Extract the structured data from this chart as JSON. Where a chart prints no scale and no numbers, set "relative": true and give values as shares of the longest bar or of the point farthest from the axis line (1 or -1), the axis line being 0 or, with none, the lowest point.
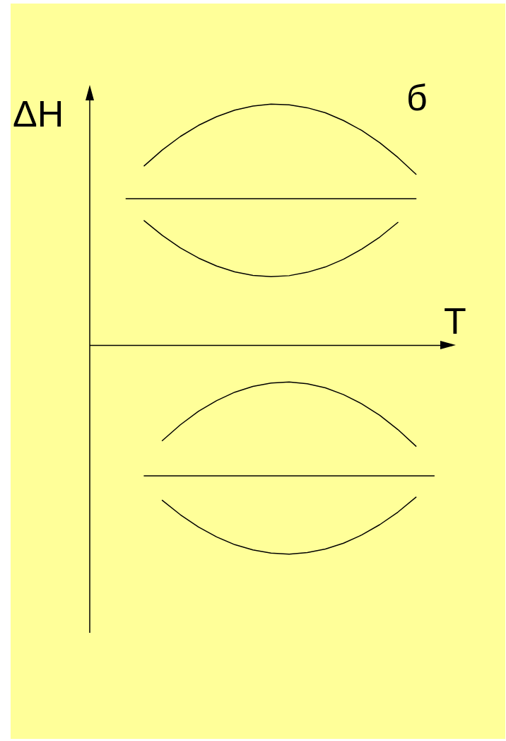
{
  "chart_data": {
    "type": "line",
    "relative": true,
    "xlabel": "T",
    "ylabel": "ΔH",
    "annotations": [
      "б"
    ],
    "tick_labels": false,
    "legend": false,
    "marker": "none",
    "line_style": "solid",
    "categories": [
      null,
      null,
      null,
      null,
      null,
      null,
      null,
      null,
      null,
      null,
      null,
      null,
      null,
      null,
      null,
      null,
      null,
      null,
      null,
      null,
      null
    ],
    "series": [
      {
        "color": "#000000",
        "values": [
          null,
          null,
          null,
          0.744,
          0.81,
          0.866,
          0.912,
          0.948,
          0.975,
          0.992,
          1,
          0.997,
          0.985,
          0.964,
          0.932,
          0.891,
          0.84,
          0.779,
          0.709,
          null,
          null
        ]
      },
      {
        "color": "#000000",
        "values": [
          null,
          null,
          0.608,
          0.608,
          0.608,
          0.608,
          0.608,
          0.608,
          0.608,
          0.608,
          0.608,
          0.608,
          0.608,
          0.608,
          0.608,
          0.608,
          0.608,
          0.608,
          0.608,
          null,
          null
        ]
      },
      {
        "color": "#000000",
        "values": [
          null,
          null,
          null,
          0.517,
          0.456,
          0.404,
          0.362,
          0.329,
          0.305,
          0.29,
          0.285,
          0.289,
          0.303,
          0.325,
          0.357,
          0.399,
          0.449,
          0.51,
          null,
          null,
          null
        ]
      },
      {
        "color": "#000000",
        "values": [
          null,
          null,
          null,
          null,
          -0.395,
          -0.329,
          -0.273,
          -0.229,
          -0.194,
          -0.17,
          -0.156,
          -0.152,
          -0.159,
          -0.176,
          -0.204,
          -0.242,
          -0.29,
          -0.349,
          -0.418,
          null,
          null
        ]
      },
      {
        "color": "#000000",
        "values": [
          null,
          null,
          null,
          -0.541,
          -0.541,
          -0.541,
          -0.541,
          -0.541,
          -0.541,
          -0.541,
          -0.541,
          -0.541,
          -0.541,
          -0.541,
          -0.541,
          -0.541,
          -0.541,
          -0.541,
          -0.541,
          -0.541,
          null
        ]
      },
      {
        "color": "#000000",
        "values": [
          null,
          null,
          null,
          null,
          -0.642,
          -0.702,
          -0.753,
          -0.794,
          -0.826,
          -0.848,
          -0.861,
          -0.865,
          -0.859,
          -0.844,
          -0.82,
          -0.786,
          -0.743,
          -0.691,
          -0.629,
          null,
          null
        ]
      }
    ]
  }
}
